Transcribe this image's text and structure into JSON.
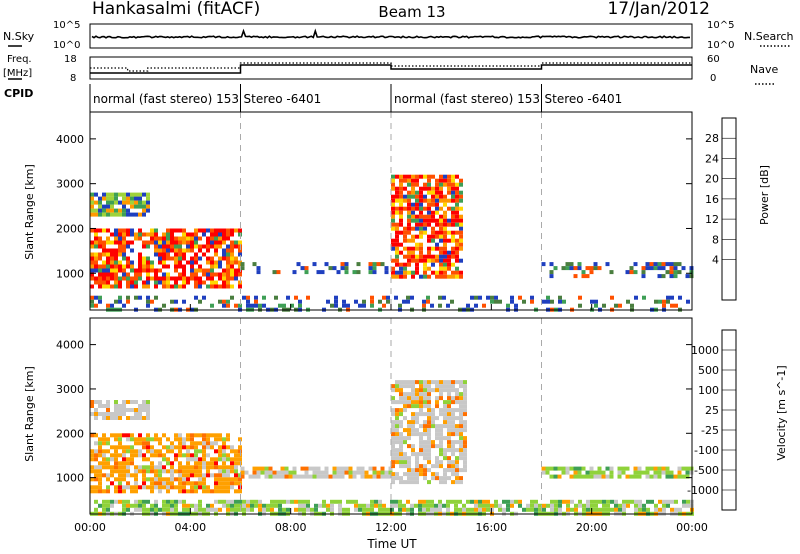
{
  "header": {
    "title": "Hankasalmi (fitACF)",
    "beam": "Beam 13",
    "date": "17/Jan/2012"
  },
  "noise_panel": {
    "left_label": "N.Sky",
    "left_ticks": [
      "10^5",
      "10^0"
    ],
    "right_ticks": [
      "10^5",
      "10^0"
    ],
    "right_label": "N.Search"
  },
  "freq_panel": {
    "left_label_1": "Freq.",
    "left_label_2": "[MHz]",
    "left_ticks": [
      "18",
      "8"
    ],
    "right_ticks": [
      "60",
      "0"
    ],
    "right_label": "Nave",
    "cpid_label": "CPID"
  },
  "cpid_segments": [
    {
      "start": 0,
      "label": "normal (fast stereo) 153"
    },
    {
      "start": 6,
      "label": "Stereo -6401"
    },
    {
      "start": 12,
      "label": "normal (fast stereo) 153"
    },
    {
      "start": 18,
      "label": "Stereo -6401"
    }
  ],
  "x_axis": {
    "label": "Time UT",
    "range": [
      0,
      24
    ],
    "ticks": [
      0,
      4,
      8,
      12,
      16,
      20,
      24
    ],
    "tick_labels": [
      "00:00",
      "04:00",
      "08:00",
      "12:00",
      "16:00",
      "20:00",
      "00:00"
    ],
    "dashed_lines": [
      6,
      18
    ],
    "solid_line": 12
  },
  "chart_data": [
    {
      "type": "heatmap",
      "title": "Power",
      "ylabel": "Slant Range [km]",
      "ylim": [
        180,
        4600
      ],
      "yticks": [
        1000,
        2000,
        3000,
        4000
      ],
      "colorbar": {
        "label": "Power [dB]",
        "tick_labels": [
          "28",
          "24",
          "20",
          "16",
          "12",
          "8",
          "4"
        ],
        "colors": [
          "#ff0000",
          "#ff5000",
          "#ff9900",
          "#ffd800",
          "#9fd23a",
          "#3e9f55",
          "#4a7e3f",
          "#1f3fbf",
          "#0000ff"
        ]
      },
      "regions": [
        {
          "t": [
            0.0,
            2.3
          ],
          "r": [
            2350,
            2800
          ],
          "level": "mid"
        },
        {
          "t": [
            0.0,
            6.0
          ],
          "r": [
            700,
            2000
          ],
          "level": "high"
        },
        {
          "t": [
            6.0,
            12.0
          ],
          "r": [
            1050,
            1250
          ],
          "level": "low"
        },
        {
          "t": [
            12.0,
            14.8
          ],
          "r": [
            900,
            3200
          ],
          "level": "high"
        },
        {
          "t": [
            18.0,
            24.0
          ],
          "r": [
            900,
            1250
          ],
          "level": "low"
        },
        {
          "t": [
            0.0,
            24.0
          ],
          "r": [
            180,
            500
          ],
          "level": "low"
        }
      ]
    },
    {
      "type": "heatmap",
      "title": "Velocity",
      "ylabel": "Slant Range [km]",
      "ylim": [
        180,
        4600
      ],
      "yticks": [
        1000,
        2000,
        3000,
        4000
      ],
      "colorbar": {
        "label": "Velocity [m s^-1]",
        "tick_labels": [
          "1000",
          "500",
          "100",
          "25",
          "-25",
          "-100",
          "-500",
          "-1000"
        ],
        "colors": [
          "#1f3fbf",
          "#4a7e3f",
          "#3e9f55",
          "#8fd23a",
          "#c8c8c8",
          "#ffa000",
          "#ff7000",
          "#ff3000",
          "#ff0000"
        ]
      },
      "regions": [
        {
          "t": [
            0.0,
            2.3
          ],
          "r": [
            2350,
            2750
          ],
          "level": "grey"
        },
        {
          "t": [
            0.0,
            6.0
          ],
          "r": [
            700,
            2000
          ],
          "level": "orange"
        },
        {
          "t": [
            6.0,
            12.0
          ],
          "r": [
            1050,
            1250
          ],
          "level": "grey"
        },
        {
          "t": [
            12.0,
            15.0
          ],
          "r": [
            900,
            3200
          ],
          "level": "grey"
        },
        {
          "t": [
            18.0,
            24.0
          ],
          "r": [
            1000,
            1250
          ],
          "level": "green"
        },
        {
          "t": [
            0.0,
            24.0
          ],
          "r": [
            180,
            500
          ],
          "level": "green"
        }
      ]
    }
  ]
}
